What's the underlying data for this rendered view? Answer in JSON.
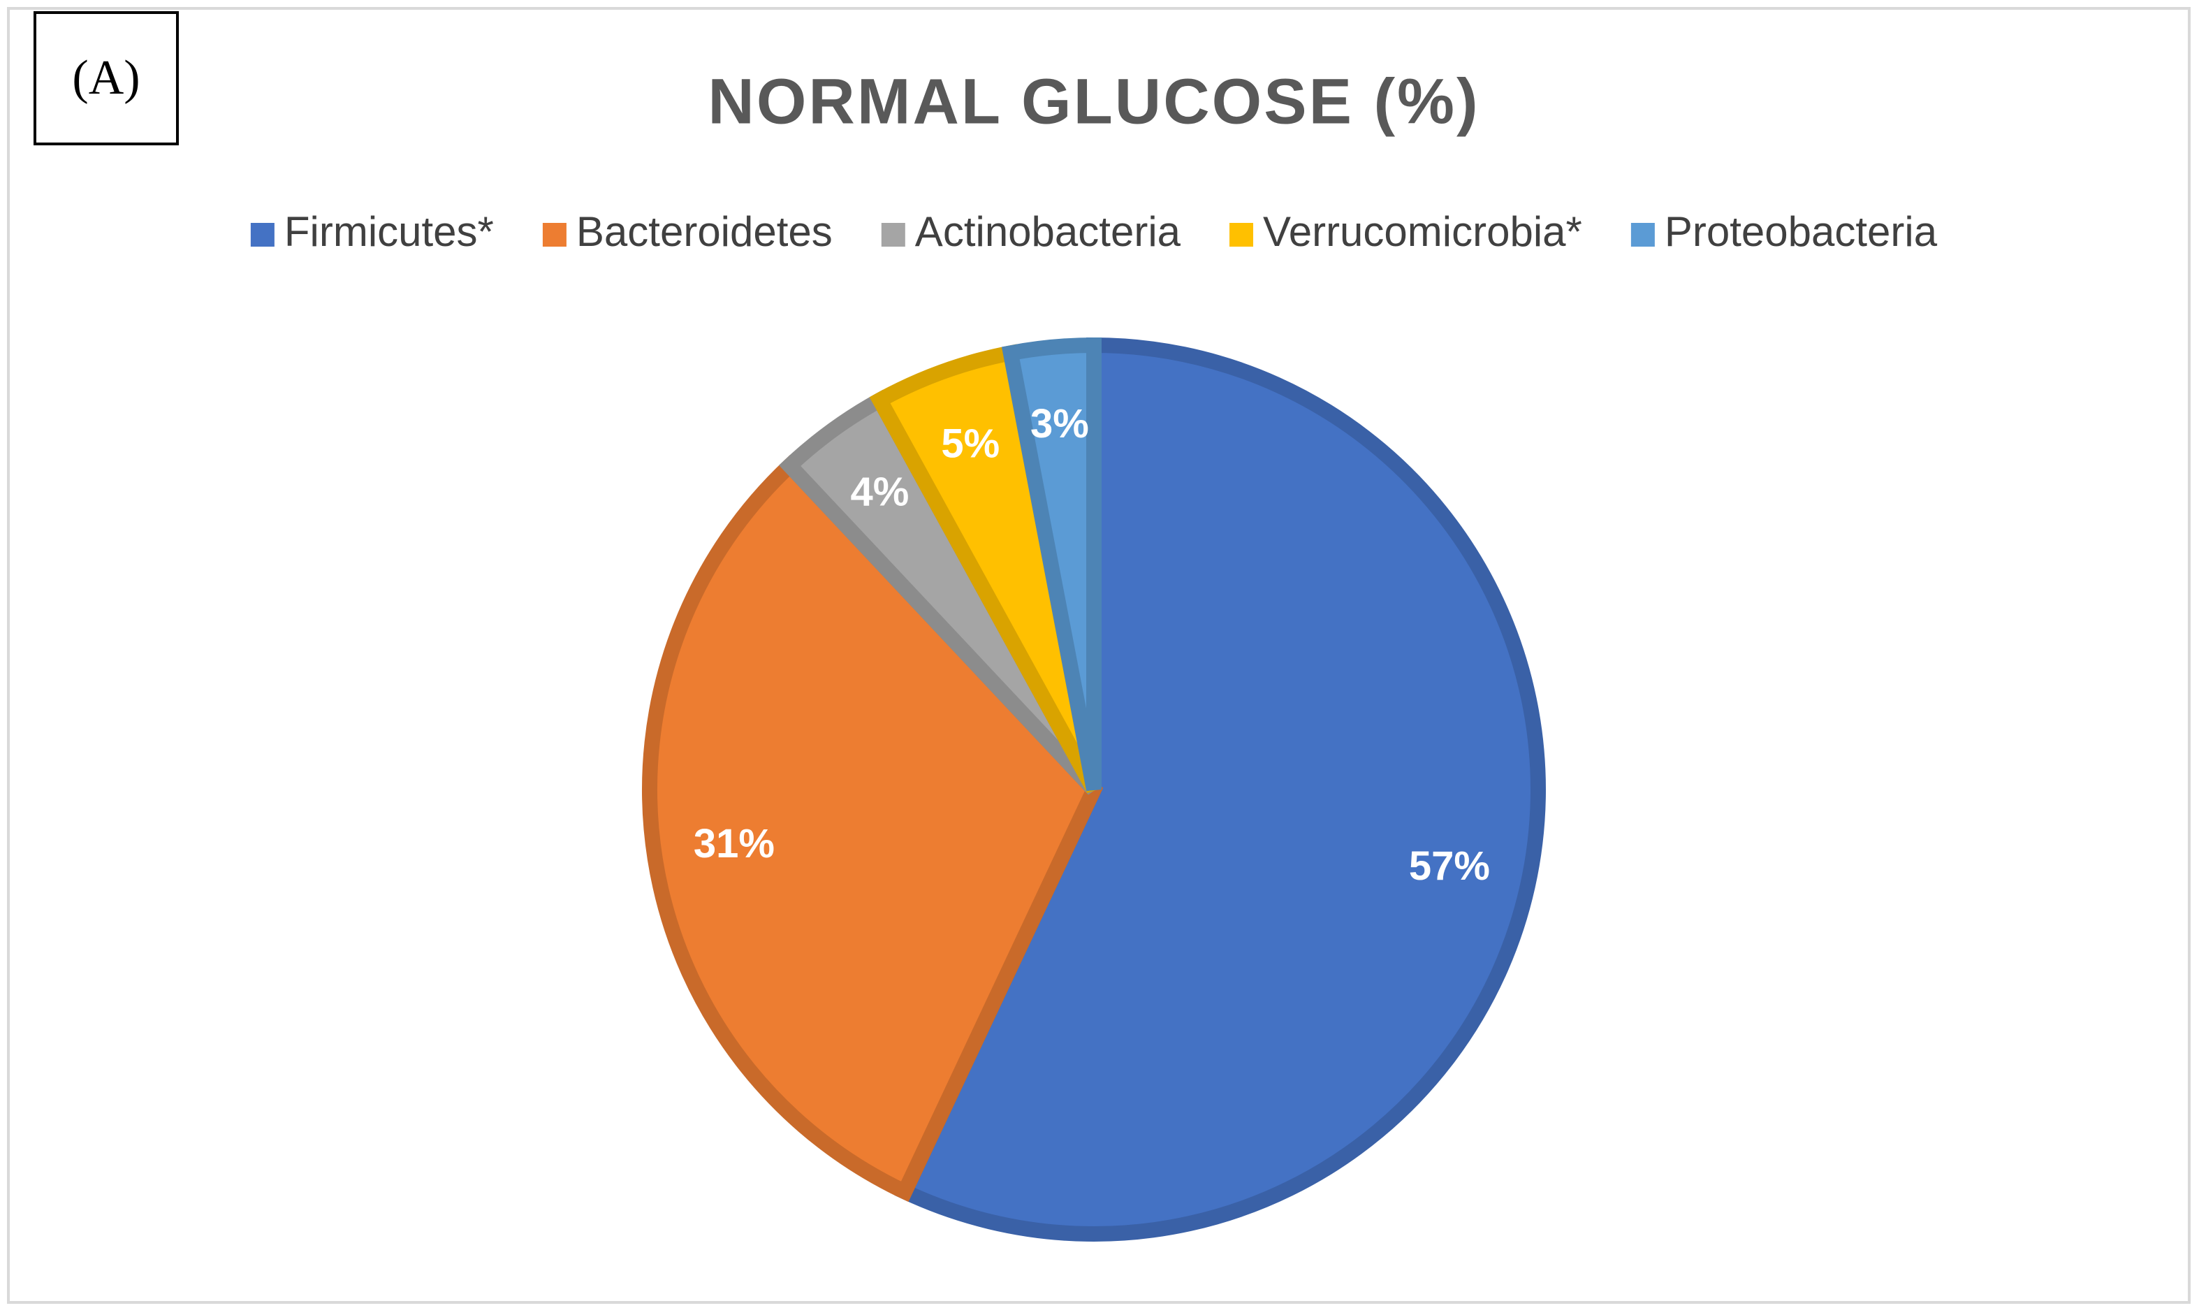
{
  "chart_data": {
    "type": "pie",
    "panel_label": "(A)",
    "title": "NORMAL GLUCOSE (%)",
    "categories": [
      "Firmicutes*",
      "Bacteroidetes",
      "Actinobacteria",
      "Verrucomicrobia*",
      "Proteobacteria"
    ],
    "values": [
      57,
      31,
      4,
      5,
      3
    ],
    "value_labels": [
      "57%",
      "31%",
      "4%",
      "5%",
      "3%"
    ],
    "colors": [
      "#4472c4",
      "#ed7d31",
      "#a5a5a5",
      "#ffc000",
      "#5b9bd5"
    ],
    "legend": "top"
  }
}
